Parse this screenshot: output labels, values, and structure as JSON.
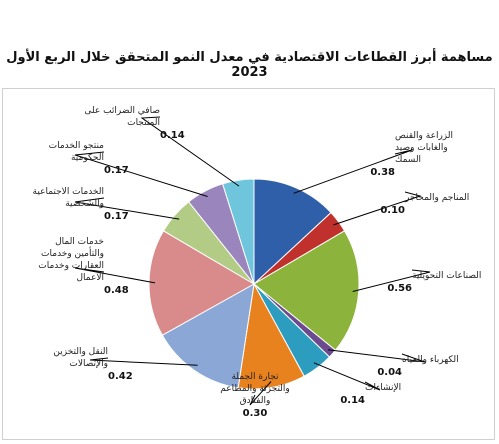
{
  "chart_data": {
    "type": "pie",
    "title": "مساهمة أبرز القطاعات الاقتصادية في معدل النمو المتحقق خلال الربع الأول 2023",
    "slices": [
      {
        "label": "الزراعة والقنص والغابات وصيد السمك",
        "value": 0.38,
        "color": "#2f5fa8"
      },
      {
        "label": "المناجم والمحاجر",
        "value": 0.1,
        "color": "#c0302d"
      },
      {
        "label": "الصناعات التحويلية",
        "value": 0.56,
        "color": "#8cb33c"
      },
      {
        "label": "الكهرباء والمياه",
        "value": 0.04,
        "color": "#6b4a8f"
      },
      {
        "label": "الإنشاءات",
        "value": 0.14,
        "color": "#2c9cbf"
      },
      {
        "label": "تجارة الجملة والتجزئة والمطاعم والفنادق",
        "value": 0.3,
        "color": "#e8821e"
      },
      {
        "label": "النقل والتخزين والإتصالات",
        "value": 0.42,
        "color": "#8aa7d6"
      },
      {
        "label": "خدمات المال والتأمين وخدمات العقارات وخدمات الاعمال",
        "value": 0.48,
        "color": "#d98b8b"
      },
      {
        "label": "الخدمات الاجتماعية والشخصية",
        "value": 0.17,
        "color": "#b2cc86"
      },
      {
        "label": "منتجو الخدمات الحكومية",
        "value": 0.17,
        "color": "#9a86bd"
      },
      {
        "label": "صافي الضرائب على المنتجات",
        "value": 0.14,
        "color": "#6fc6dc"
      }
    ]
  }
}
